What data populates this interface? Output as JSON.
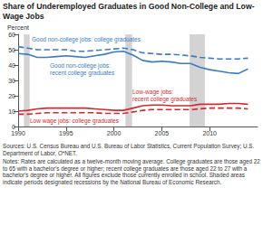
{
  "chart_data": {
    "type": "line",
    "title": "Share of Underemployed Graduates in Good Non-College and Low-Wage Jobs",
    "y_label": "Percent",
    "x": [
      1990,
      1991,
      1992,
      1993,
      1994,
      1995,
      1996,
      1997,
      1998,
      1999,
      2000,
      2001,
      2002,
      2003,
      2004,
      2005,
      2006,
      2007,
      2008,
      2009,
      2010,
      2011,
      2012,
      2013,
      2014
    ],
    "series": [
      {
        "name": "Good non-college jobs: college graduates",
        "color": "#3a7cc3",
        "line_style": "dashed",
        "marker": "none",
        "values": [
          52,
          51,
          50,
          50,
          50,
          50,
          49,
          49,
          49.5,
          50,
          50.5,
          51,
          50,
          48,
          47.5,
          47,
          47,
          46.5,
          46,
          45,
          44.5,
          44,
          44,
          44,
          44.5
        ]
      },
      {
        "name": "Good non-college jobs: recent college graduates",
        "color": "#3a7cc3",
        "line_style": "solid",
        "marker": "none",
        "values": [
          47.5,
          47,
          45,
          45,
          45.5,
          46,
          45.5,
          45,
          46,
          47,
          48.5,
          49,
          46.5,
          43,
          42,
          42.5,
          42,
          41,
          41,
          38.5,
          37,
          36,
          35,
          34.5,
          37.5
        ]
      },
      {
        "name": "Low-wage jobs: recent college graduates",
        "color": "#d42a2f",
        "line_style": "solid",
        "marker": "none",
        "values": [
          10,
          10.5,
          11.5,
          12,
          12,
          12,
          12,
          12,
          11.5,
          11,
          10.5,
          10.5,
          12,
          13.5,
          14,
          14,
          13.5,
          13.5,
          13.5,
          14.5,
          14.5,
          14.5,
          15,
          15,
          14.5
        ]
      },
      {
        "name": "Low wage jobs: college graduates",
        "color": "#d42a2f",
        "line_style": "dashed",
        "marker": "none",
        "values": [
          8,
          8,
          8.5,
          9,
          9,
          9,
          9,
          9,
          9,
          8.5,
          8.5,
          8.5,
          9.5,
          10.5,
          11,
          11,
          11,
          11,
          11,
          11.5,
          12,
          12,
          12,
          12,
          11.5
        ]
      }
    ],
    "recessions": [
      [
        1990.6,
        1991.2
      ],
      [
        2001.2,
        2001.9
      ],
      [
        2007.9,
        2009.5
      ]
    ],
    "recession_color": "#d3d3d3",
    "xlim": [
      1990,
      2015
    ],
    "xticks": [
      1990,
      1995,
      2000,
      2005,
      2010
    ],
    "ylim": [
      0,
      60
    ],
    "yticks": [
      0,
      10,
      20,
      30,
      40,
      50,
      60
    ],
    "grid": false,
    "sources": "Sources: U.S. Census Bureau and U.S. Bureau of Labor Statistics, Current Population Survey; U.S. Department of Labor, O*NET.",
    "notes": "Notes: Rates are calculated as a twelve-month moving average. College graduates are those aged 22 to 65 with a bachelor's degree or higher; recent college graduates are those aged 22 to 27 with a bachelor's degree or higher. All figures exclude those currently enrolled in school. Shaded areas indicate periods designated recessions by the National Bureau of Economic Research."
  }
}
